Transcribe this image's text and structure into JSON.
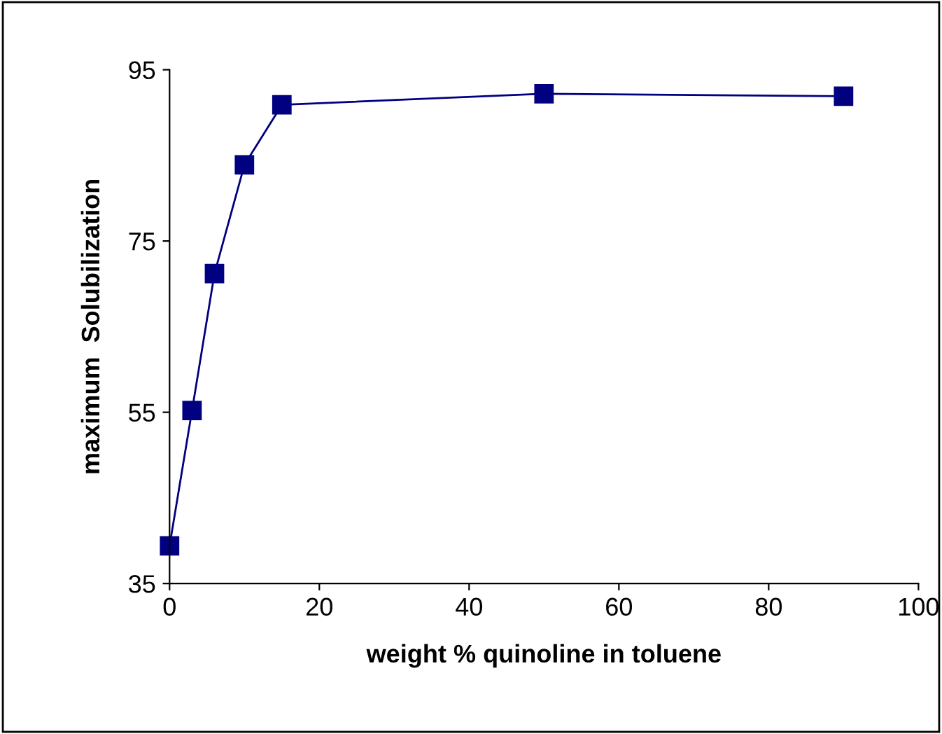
{
  "chart_data": {
    "type": "line",
    "xlabel": "weight % quinoline in toluene",
    "ylabel": "maximum  Solubilization",
    "x": [
      0,
      3,
      6,
      10,
      15,
      50,
      90
    ],
    "series": [
      {
        "color": "#000080",
        "values": [
          39.4,
          55.2,
          71.2,
          83.9,
          90.9,
          92.2,
          91.9
        ]
      }
    ],
    "xlim": [
      0,
      100
    ],
    "xticks": [
      0,
      20,
      40,
      60,
      80,
      100
    ],
    "ylim": [
      35,
      95
    ],
    "yticks": [
      35,
      55,
      75,
      95
    ],
    "marker": "square",
    "line_style": "solid",
    "grid": false,
    "legend": false
  }
}
